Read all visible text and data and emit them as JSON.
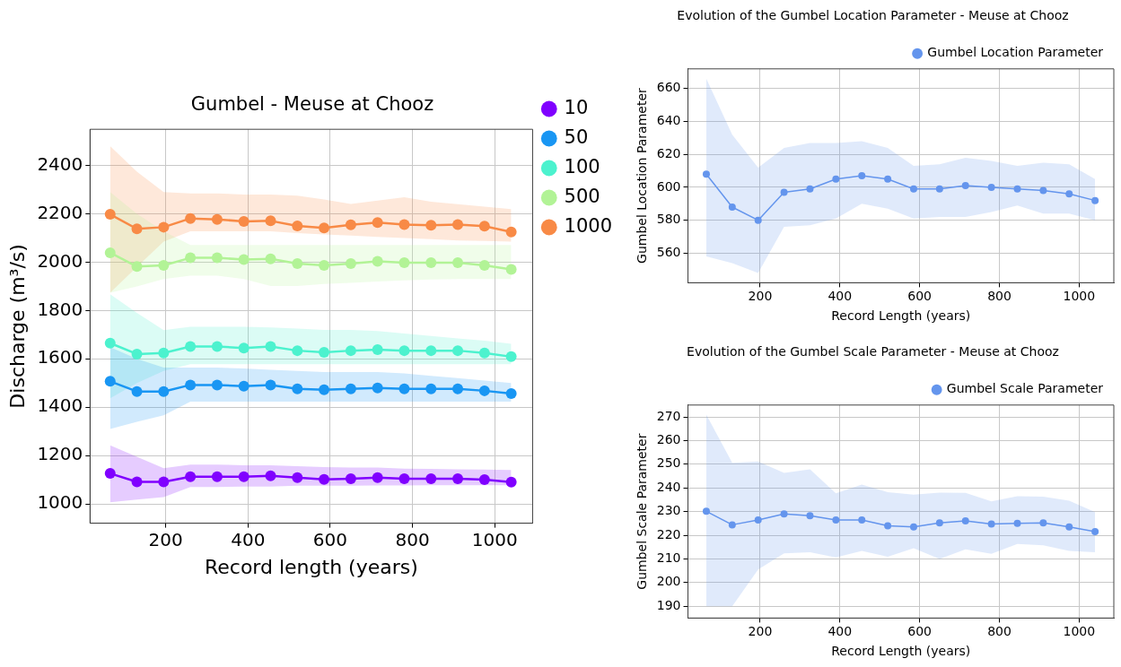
{
  "chart_data": [
    {
      "type": "line",
      "title": "Gumbel - Meuse at Chooz",
      "xlabel": "Record length (years)",
      "ylabel": "Discharge (m³/s)",
      "x": [
        65,
        130,
        195,
        260,
        325,
        390,
        455,
        520,
        585,
        650,
        715,
        780,
        845,
        910,
        975,
        1040
      ],
      "xlim": [
        16,
        1092
      ],
      "xticks": [
        200,
        400,
        600,
        800,
        1000
      ],
      "ylim": [
        920,
        2550
      ],
      "yticks": [
        1000,
        1200,
        1400,
        1600,
        1800,
        2000,
        2200,
        2400
      ],
      "grid": true,
      "legend": "right",
      "marker": "circle",
      "series": [
        {
          "name": "10",
          "color": "#8000ff",
          "values": [
            1126,
            1091,
            1091,
            1112,
            1112,
            1112,
            1116,
            1109,
            1101,
            1104,
            1109,
            1104,
            1104,
            1104,
            1100,
            1090
          ],
          "lower": [
            1007,
            1018,
            1028,
            1070,
            1070,
            1072,
            1072,
            1075,
            1075,
            1075,
            1076,
            1076,
            1077,
            1077,
            1077,
            1077
          ],
          "upper": [
            1242,
            1195,
            1148,
            1162,
            1162,
            1160,
            1160,
            1156,
            1152,
            1150,
            1150,
            1146,
            1145,
            1143,
            1142,
            1140
          ]
        },
        {
          "name": "50",
          "color": "#1996f3",
          "values": [
            1507,
            1465,
            1465,
            1492,
            1492,
            1487,
            1492,
            1476,
            1472,
            1476,
            1480,
            1476,
            1476,
            1476,
            1468,
            1456
          ],
          "lower": [
            1310,
            1340,
            1366,
            1423,
            1423,
            1423,
            1423,
            1423,
            1423,
            1423,
            1423,
            1423,
            1423,
            1423,
            1423,
            1423
          ],
          "upper": [
            1648,
            1600,
            1564,
            1564,
            1564,
            1560,
            1555,
            1550,
            1545,
            1545,
            1545,
            1540,
            1530,
            1520,
            1510,
            1500
          ]
        },
        {
          "name": "100",
          "color": "#4cf2ce",
          "values": [
            1665,
            1620,
            1624,
            1651,
            1651,
            1645,
            1651,
            1634,
            1627,
            1634,
            1638,
            1634,
            1634,
            1634,
            1624,
            1609
          ],
          "lower": [
            1437,
            1500,
            1550,
            1578,
            1578,
            1578,
            1578,
            1578,
            1578,
            1578,
            1578,
            1578,
            1578,
            1578,
            1578,
            1578
          ],
          "upper": [
            1867,
            1790,
            1719,
            1733,
            1733,
            1733,
            1730,
            1725,
            1720,
            1720,
            1715,
            1705,
            1695,
            1685,
            1675,
            1662
          ]
        },
        {
          "name": "500",
          "color": "#b2f396",
          "values": [
            2039,
            1982,
            1987,
            2018,
            2018,
            2011,
            2014,
            1994,
            1987,
            1994,
            2004,
            1998,
            1998,
            1998,
            1987,
            1970
          ],
          "lower": [
            1874,
            1900,
            1930,
            1944,
            1944,
            1930,
            1902,
            1902,
            1910,
            1915,
            1920,
            1925,
            1928,
            1930,
            1930,
            1930
          ],
          "upper": [
            2290,
            2200,
            2128,
            2071,
            2071,
            2071,
            2071,
            2071,
            2071,
            2071,
            2071,
            2071,
            2071,
            2071,
            2071,
            2071
          ]
        },
        {
          "name": "1000",
          "color": "#f88a46",
          "values": [
            2198,
            2138,
            2145,
            2181,
            2177,
            2169,
            2171,
            2150,
            2142,
            2155,
            2164,
            2156,
            2153,
            2156,
            2149,
            2125
          ],
          "lower": [
            1874,
            1980,
            2085,
            2128,
            2128,
            2128,
            2128,
            2120,
            2115,
            2110,
            2105,
            2100,
            2095,
            2090,
            2088,
            2085
          ],
          "upper": [
            2480,
            2375,
            2290,
            2285,
            2285,
            2280,
            2280,
            2275,
            2260,
            2241,
            2255,
            2269,
            2250,
            2240,
            2230,
            2220
          ]
        }
      ]
    },
    {
      "type": "line",
      "title": "Evolution of the Gumbel Location Parameter - Meuse at Chooz",
      "xlabel": "Record Length (years)",
      "ylabel": "Gumbel Location Parameter",
      "x": [
        65,
        130,
        195,
        260,
        325,
        390,
        455,
        520,
        585,
        650,
        715,
        780,
        845,
        910,
        975,
        1040
      ],
      "xlim": [
        19,
        1087
      ],
      "xticks": [
        200,
        400,
        600,
        800,
        1000
      ],
      "ylim": [
        542,
        672
      ],
      "yticks": [
        560,
        580,
        600,
        620,
        640,
        660
      ],
      "grid": true,
      "legend": "top right",
      "marker": "circle",
      "series": [
        {
          "name": "Gumbel Location Parameter",
          "color": "#6495ed",
          "values": [
            608,
            588,
            580,
            597,
            599,
            605,
            607,
            605,
            599,
            599,
            601,
            600,
            599,
            598,
            596,
            592
          ],
          "lower": [
            558,
            554,
            548,
            576,
            577,
            581,
            590,
            587,
            581,
            582,
            582,
            585,
            589,
            584,
            584,
            580
          ],
          "upper": [
            666,
            632,
            612,
            624,
            627,
            627,
            628,
            624,
            613,
            614,
            618,
            616,
            613,
            615,
            614,
            605
          ]
        }
      ]
    },
    {
      "type": "line",
      "title": "Evolution of the Gumbel Scale Parameter - Meuse at Chooz",
      "xlabel": "Record Length (years)",
      "ylabel": "Gumbel Scale Parameter",
      "x": [
        65,
        130,
        195,
        260,
        325,
        390,
        455,
        520,
        585,
        650,
        715,
        780,
        845,
        910,
        975,
        1040
      ],
      "xlim": [
        19,
        1087
      ],
      "xticks": [
        200,
        400,
        600,
        800,
        1000
      ],
      "ylim": [
        185,
        275
      ],
      "yticks": [
        190,
        200,
        210,
        220,
        230,
        240,
        250,
        260,
        270
      ],
      "grid": true,
      "legend": "top right",
      "marker": "circle",
      "series": [
        {
          "name": "Gumbel Scale Parameter",
          "color": "#6495ed",
          "values": [
            230.1,
            224.4,
            226.4,
            229,
            228.2,
            226.4,
            226.4,
            224,
            223.5,
            225.2,
            226.1,
            224.7,
            225,
            225.2,
            223.5,
            221.5
          ],
          "lower": [
            190,
            190,
            205.5,
            212.3,
            212.8,
            210.6,
            213.4,
            210.9,
            214.5,
            210,
            214,
            212.1,
            216.3,
            215.7,
            213.4,
            212.8
          ],
          "upper": [
            270.9,
            250.6,
            251.2,
            246.3,
            247.8,
            237.7,
            241.4,
            238.2,
            237.1,
            238,
            237.9,
            234.3,
            236.5,
            236.3,
            234.6,
            229.8
          ]
        }
      ]
    }
  ]
}
